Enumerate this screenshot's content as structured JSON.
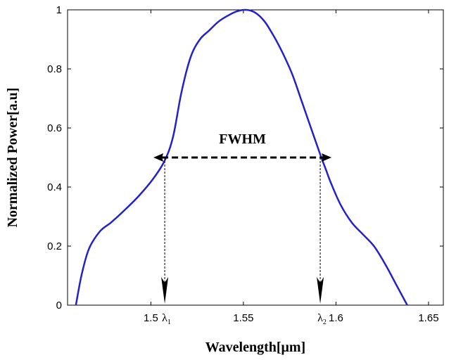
{
  "chart_data": {
    "type": "line",
    "title": "",
    "xlabel": "Wavelength[μm]",
    "ylabel": "Normalized Power[a.u]",
    "xlim": [
      1.455,
      1.658
    ],
    "ylim": [
      0,
      1
    ],
    "xticks": [
      1.5,
      1.55,
      1.6,
      1.65
    ],
    "xtick_labels": [
      "1.5",
      "1.55",
      "1.6",
      "1.65"
    ],
    "yticks": [
      0,
      0.2,
      0.4,
      0.6,
      0.8,
      1
    ],
    "ytick_labels": [
      "0",
      "0.2",
      "0.4",
      "0.6",
      "0.8",
      "1"
    ],
    "grid": false,
    "line_color": "#2222cc",
    "series": [
      {
        "x": [
          1.4595,
          1.4625,
          1.4665,
          1.4725,
          1.4785,
          1.4855,
          1.4935,
          1.5015,
          1.5075,
          1.512,
          1.5165,
          1.5215,
          1.5265,
          1.5315,
          1.5365,
          1.5415,
          1.5465,
          1.5515,
          1.5565,
          1.5615,
          1.5665,
          1.5715,
          1.5765,
          1.5815,
          1.5865,
          1.5915,
          1.5945,
          1.5975,
          1.6025,
          1.6085,
          1.6145,
          1.6205,
          1.6265,
          1.6325,
          1.6385
        ],
        "y": [
          0.0,
          0.1,
          0.19,
          0.25,
          0.28,
          0.32,
          0.37,
          0.43,
          0.49,
          0.57,
          0.72,
          0.84,
          0.9,
          0.93,
          0.96,
          0.98,
          0.995,
          1.0,
          0.99,
          0.96,
          0.91,
          0.85,
          0.78,
          0.69,
          0.6,
          0.51,
          0.46,
          0.41,
          0.34,
          0.28,
          0.24,
          0.2,
          0.14,
          0.07,
          0.0
        ]
      }
    ],
    "annotations": {
      "fwhm_label": "FWHM",
      "fwhm_level": 0.5,
      "lambda1": {
        "symbol": "λ",
        "sub": "1",
        "x": 1.5075
      },
      "lambda2": {
        "symbol": "λ",
        "sub": "2",
        "x": 1.5915
      }
    }
  }
}
